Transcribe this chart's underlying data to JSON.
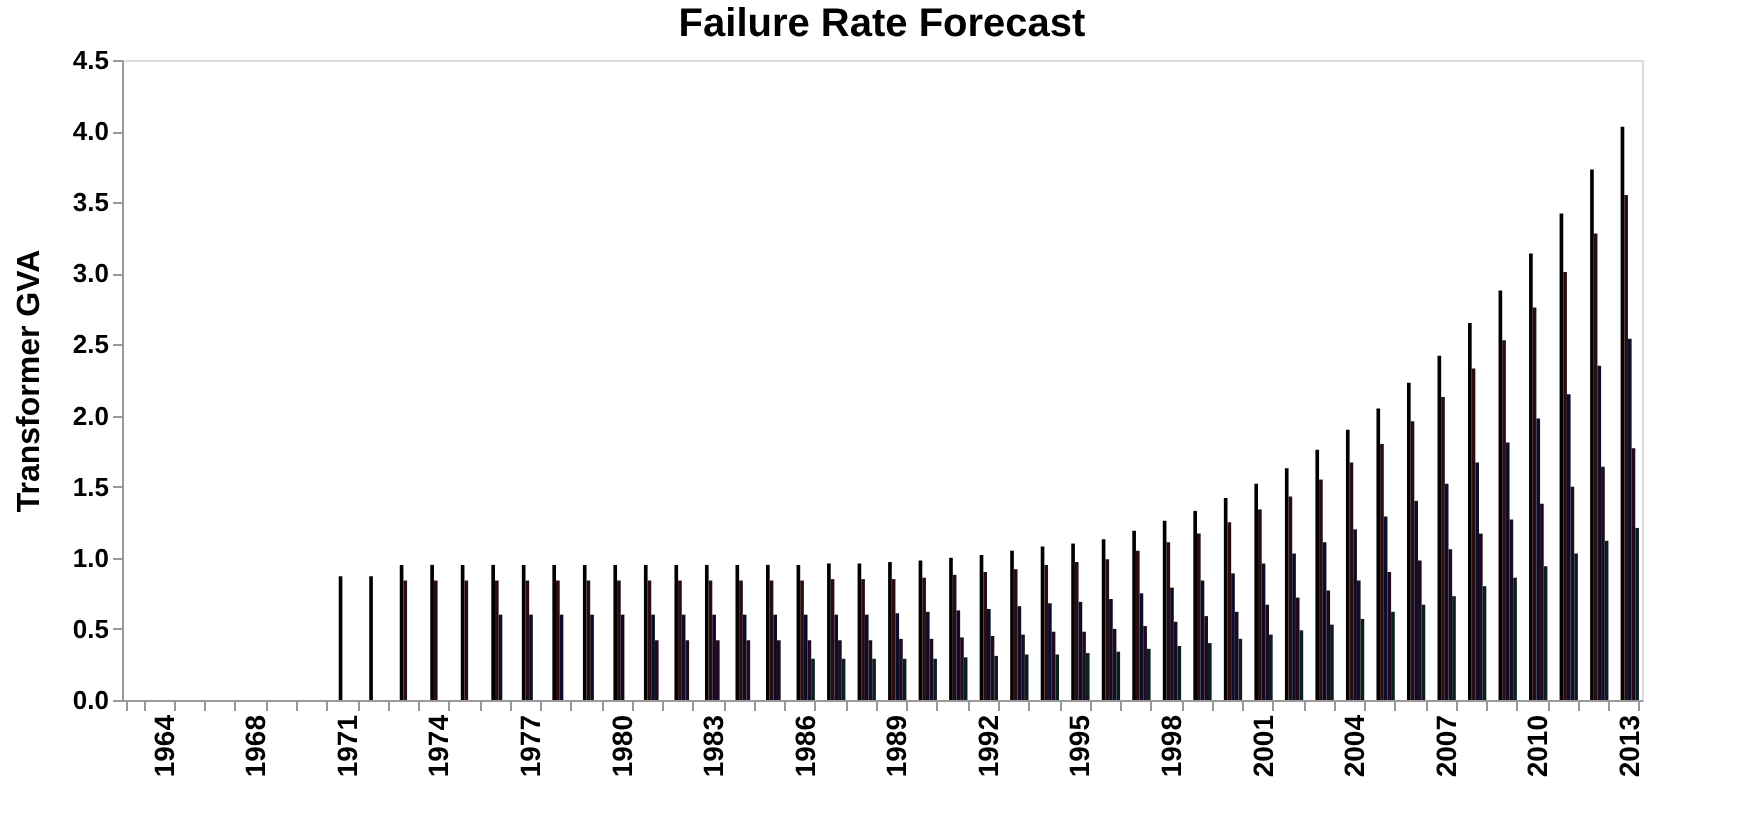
{
  "chart_data": {
    "type": "bar",
    "title": "Failure Rate Forecast",
    "ylabel": "Transformer GVA",
    "categories": [
      null,
      "1964",
      null,
      null,
      "1968",
      null,
      null,
      "1971",
      null,
      null,
      "1974",
      null,
      null,
      "1977",
      null,
      null,
      "1980",
      null,
      null,
      "1983",
      null,
      null,
      "1986",
      null,
      null,
      "1989",
      null,
      null,
      "1992",
      null,
      null,
      "1995",
      null,
      null,
      "1998",
      null,
      null,
      "2001",
      null,
      null,
      "2004",
      null,
      null,
      "2007",
      null,
      null,
      "2010",
      null,
      null,
      "2013"
    ],
    "series": [
      {
        "color": "#000000",
        "values": [
          null,
          null,
          null,
          null,
          null,
          null,
          null,
          0.87,
          0.87,
          0.95,
          0.95,
          0.95,
          0.95,
          0.95,
          0.95,
          0.95,
          0.95,
          0.95,
          0.95,
          0.95,
          0.95,
          0.95,
          0.95,
          0.96,
          0.96,
          0.97,
          0.98,
          1.0,
          1.02,
          1.05,
          1.08,
          1.1,
          1.13,
          1.19,
          1.26,
          1.33,
          1.42,
          1.52,
          1.63,
          1.76,
          1.9,
          2.05,
          2.23,
          2.42,
          2.65,
          2.88,
          3.14,
          3.42,
          3.73,
          4.03
        ]
      },
      {
        "color": "#2a0d0d",
        "values": [
          null,
          null,
          null,
          null,
          null,
          null,
          null,
          null,
          null,
          0.84,
          0.84,
          0.84,
          0.84,
          0.84,
          0.84,
          0.84,
          0.84,
          0.84,
          0.84,
          0.84,
          0.84,
          0.84,
          0.84,
          0.85,
          0.85,
          0.85,
          0.86,
          0.88,
          0.9,
          0.92,
          0.95,
          0.97,
          0.99,
          1.05,
          1.11,
          1.17,
          1.25,
          1.34,
          1.43,
          1.55,
          1.67,
          1.8,
          1.96,
          2.13,
          2.33,
          2.53,
          2.76,
          3.01,
          3.28,
          3.55
        ]
      },
      {
        "color": "#0d0d2a",
        "values": [
          null,
          null,
          null,
          null,
          null,
          null,
          null,
          null,
          null,
          null,
          null,
          null,
          0.6,
          0.6,
          0.6,
          0.6,
          0.6,
          0.6,
          0.6,
          0.6,
          0.6,
          0.6,
          0.6,
          0.6,
          0.6,
          0.61,
          0.62,
          0.63,
          0.64,
          0.66,
          0.68,
          0.69,
          0.71,
          0.75,
          0.79,
          0.84,
          0.89,
          0.96,
          1.03,
          1.11,
          1.2,
          1.29,
          1.4,
          1.52,
          1.67,
          1.81,
          1.98,
          2.15,
          2.35,
          2.54
        ]
      },
      {
        "color": "#200a20",
        "values": [
          null,
          null,
          null,
          null,
          null,
          null,
          null,
          null,
          null,
          null,
          null,
          null,
          null,
          null,
          null,
          null,
          null,
          0.42,
          0.42,
          0.42,
          0.42,
          0.42,
          0.42,
          0.42,
          0.42,
          0.43,
          0.43,
          0.44,
          0.45,
          0.46,
          0.48,
          0.48,
          0.5,
          0.52,
          0.55,
          0.59,
          0.62,
          0.67,
          0.72,
          0.77,
          0.84,
          0.9,
          0.98,
          1.06,
          1.17,
          1.27,
          1.38,
          1.5,
          1.64,
          1.77
        ]
      },
      {
        "color": "#0a2020",
        "values": [
          null,
          null,
          null,
          null,
          null,
          null,
          null,
          null,
          null,
          null,
          null,
          null,
          null,
          null,
          null,
          null,
          null,
          null,
          null,
          null,
          null,
          null,
          0.29,
          0.29,
          0.29,
          0.29,
          0.29,
          0.3,
          0.31,
          0.32,
          0.32,
          0.33,
          0.34,
          0.36,
          0.38,
          0.4,
          0.43,
          0.46,
          0.49,
          0.53,
          0.57,
          0.62,
          0.67,
          0.73,
          0.8,
          0.86,
          0.94,
          1.03,
          1.12,
          1.21
        ]
      }
    ],
    "ylim": [
      0,
      4.5
    ],
    "yticks": [
      {
        "value": 0,
        "label": "0.0"
      },
      {
        "value": 0.5,
        "label": "0.5"
      },
      {
        "value": 1,
        "label": "1.0"
      },
      {
        "value": 1.5,
        "label": "1.5"
      },
      {
        "value": 2,
        "label": "2.0"
      },
      {
        "value": 2.5,
        "label": "2.5"
      },
      {
        "value": 3,
        "label": "3.0"
      },
      {
        "value": 3.5,
        "label": "3.5"
      },
      {
        "value": 4,
        "label": "4.0"
      },
      {
        "value": 4.5,
        "label": "4.5"
      }
    ],
    "grid": false,
    "legend": false
  }
}
